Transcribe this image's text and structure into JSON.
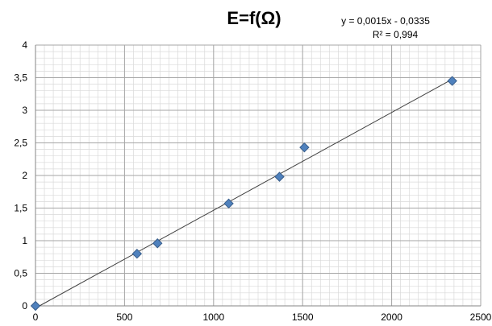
{
  "chart_data": {
    "type": "scatter",
    "title": "E=f(Ω)",
    "trendline": {
      "equation": "y = 0,0015x - 0,0335",
      "r_squared": "R² = 0,994",
      "slope": 0.0015,
      "intercept": -0.0335
    },
    "x": [
      0,
      570,
      685,
      1085,
      1370,
      1510,
      2340
    ],
    "y": [
      0,
      0.8,
      0.96,
      1.57,
      1.98,
      2.43,
      3.45
    ],
    "xlim": [
      0,
      2500
    ],
    "ylim": [
      0,
      4
    ],
    "x_ticks": [
      0,
      500,
      1000,
      1500,
      2000,
      2500
    ],
    "x_tick_labels": [
      "0",
      "500",
      "1000",
      "1500",
      "2000",
      "2500"
    ],
    "y_ticks": [
      0,
      0.5,
      1,
      1.5,
      2,
      2.5,
      3,
      3.5,
      4
    ],
    "y_tick_labels": [
      "0",
      "0,5",
      "1",
      "1,5",
      "2",
      "2,5",
      "3",
      "3,5",
      "4"
    ],
    "grid": true,
    "marker_color": "#4F81BD",
    "marker_border": "#385D8A",
    "trendline_color": "#404040"
  }
}
